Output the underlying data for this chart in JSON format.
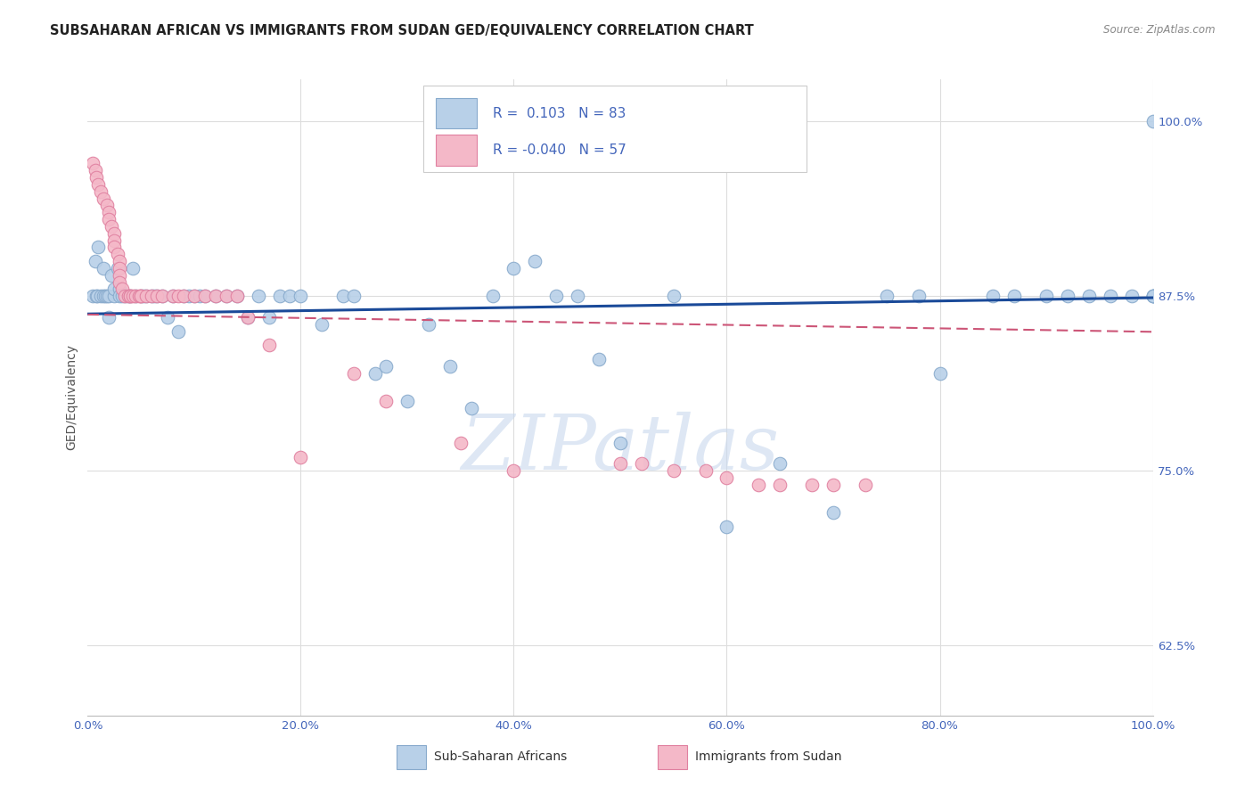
{
  "title": "SUBSAHARAN AFRICAN VS IMMIGRANTS FROM SUDAN GED/EQUIVALENCY CORRELATION CHART",
  "source": "Source: ZipAtlas.com",
  "ylabel": "GED/Equivalency",
  "xlim": [
    0.0,
    1.0
  ],
  "ylim": [
    0.575,
    1.03
  ],
  "yticks": [
    0.625,
    0.75,
    0.875,
    1.0
  ],
  "ytick_labels": [
    "62.5%",
    "75.0%",
    "87.5%",
    "100.0%"
  ],
  "xticks": [
    0.0,
    0.2,
    0.4,
    0.6,
    0.8,
    1.0
  ],
  "xtick_labels": [
    "0.0%",
    "20.0%",
    "40.0%",
    "60.0%",
    "80.0%",
    "100.0%"
  ],
  "blue_r": 0.103,
  "blue_n": 83,
  "pink_r": -0.04,
  "pink_n": 57,
  "blue_face": "#b8d0e8",
  "blue_edge": "#88aacc",
  "pink_face": "#f4b8c8",
  "pink_edge": "#e080a0",
  "blue_line_color": "#1a4a99",
  "pink_line_color": "#cc5577",
  "background_color": "#ffffff",
  "grid_color": "#dddddd",
  "title_color": "#222222",
  "ylabel_color": "#555555",
  "tick_color": "#4466bb",
  "legend_text_color": "#4466bb",
  "watermark_color": "#c8d8ee",
  "blue_x": [
    0.005,
    0.007,
    0.008,
    0.009,
    0.01,
    0.012,
    0.015,
    0.015,
    0.016,
    0.018,
    0.02,
    0.02,
    0.022,
    0.025,
    0.025,
    0.028,
    0.03,
    0.03,
    0.032,
    0.035,
    0.038,
    0.04,
    0.042,
    0.045,
    0.05,
    0.052,
    0.055,
    0.06,
    0.062,
    0.065,
    0.07,
    0.075,
    0.08,
    0.085,
    0.09,
    0.095,
    0.1,
    0.105,
    0.11,
    0.12,
    0.13,
    0.14,
    0.15,
    0.16,
    0.17,
    0.18,
    0.19,
    0.2,
    0.22,
    0.24,
    0.25,
    0.27,
    0.28,
    0.3,
    0.32,
    0.34,
    0.36,
    0.38,
    0.4,
    0.42,
    0.44,
    0.46,
    0.48,
    0.5,
    0.55,
    0.6,
    0.65,
    0.7,
    0.75,
    0.78,
    0.8,
    0.85,
    0.87,
    0.9,
    0.92,
    0.94,
    0.96,
    0.98,
    1.0,
    1.0,
    1.0,
    1.0,
    1.0
  ],
  "blue_y": [
    0.875,
    0.9,
    0.875,
    0.875,
    0.91,
    0.875,
    0.875,
    0.895,
    0.875,
    0.875,
    0.875,
    0.86,
    0.89,
    0.875,
    0.88,
    0.895,
    0.88,
    0.875,
    0.875,
    0.875,
    0.875,
    0.875,
    0.895,
    0.875,
    0.875,
    0.875,
    0.875,
    0.875,
    0.875,
    0.875,
    0.875,
    0.86,
    0.875,
    0.85,
    0.875,
    0.875,
    0.875,
    0.875,
    0.875,
    0.875,
    0.875,
    0.875,
    0.86,
    0.875,
    0.86,
    0.875,
    0.875,
    0.875,
    0.855,
    0.875,
    0.875,
    0.82,
    0.825,
    0.8,
    0.855,
    0.825,
    0.795,
    0.875,
    0.895,
    0.9,
    0.875,
    0.875,
    0.83,
    0.77,
    0.875,
    0.71,
    0.755,
    0.72,
    0.875,
    0.875,
    0.82,
    0.875,
    0.875,
    0.875,
    0.875,
    0.875,
    0.875,
    0.875,
    0.875,
    0.875,
    0.875,
    0.875,
    1.0
  ],
  "pink_x": [
    0.005,
    0.007,
    0.008,
    0.01,
    0.012,
    0.015,
    0.018,
    0.02,
    0.02,
    0.022,
    0.025,
    0.025,
    0.025,
    0.028,
    0.03,
    0.03,
    0.03,
    0.03,
    0.032,
    0.035,
    0.038,
    0.04,
    0.04,
    0.042,
    0.045,
    0.048,
    0.05,
    0.05,
    0.055,
    0.06,
    0.065,
    0.07,
    0.08,
    0.085,
    0.09,
    0.1,
    0.11,
    0.12,
    0.13,
    0.14,
    0.15,
    0.17,
    0.2,
    0.25,
    0.28,
    0.35,
    0.4,
    0.5,
    0.52,
    0.55,
    0.58,
    0.6,
    0.63,
    0.65,
    0.68,
    0.7,
    0.73
  ],
  "pink_y": [
    0.97,
    0.965,
    0.96,
    0.955,
    0.95,
    0.945,
    0.94,
    0.935,
    0.93,
    0.925,
    0.92,
    0.915,
    0.91,
    0.905,
    0.9,
    0.895,
    0.89,
    0.885,
    0.88,
    0.875,
    0.875,
    0.875,
    0.875,
    0.875,
    0.875,
    0.875,
    0.875,
    0.875,
    0.875,
    0.875,
    0.875,
    0.875,
    0.875,
    0.875,
    0.875,
    0.875,
    0.875,
    0.875,
    0.875,
    0.875,
    0.86,
    0.84,
    0.76,
    0.82,
    0.8,
    0.77,
    0.75,
    0.755,
    0.755,
    0.75,
    0.75,
    0.745,
    0.74,
    0.74,
    0.74,
    0.74,
    0.74
  ]
}
